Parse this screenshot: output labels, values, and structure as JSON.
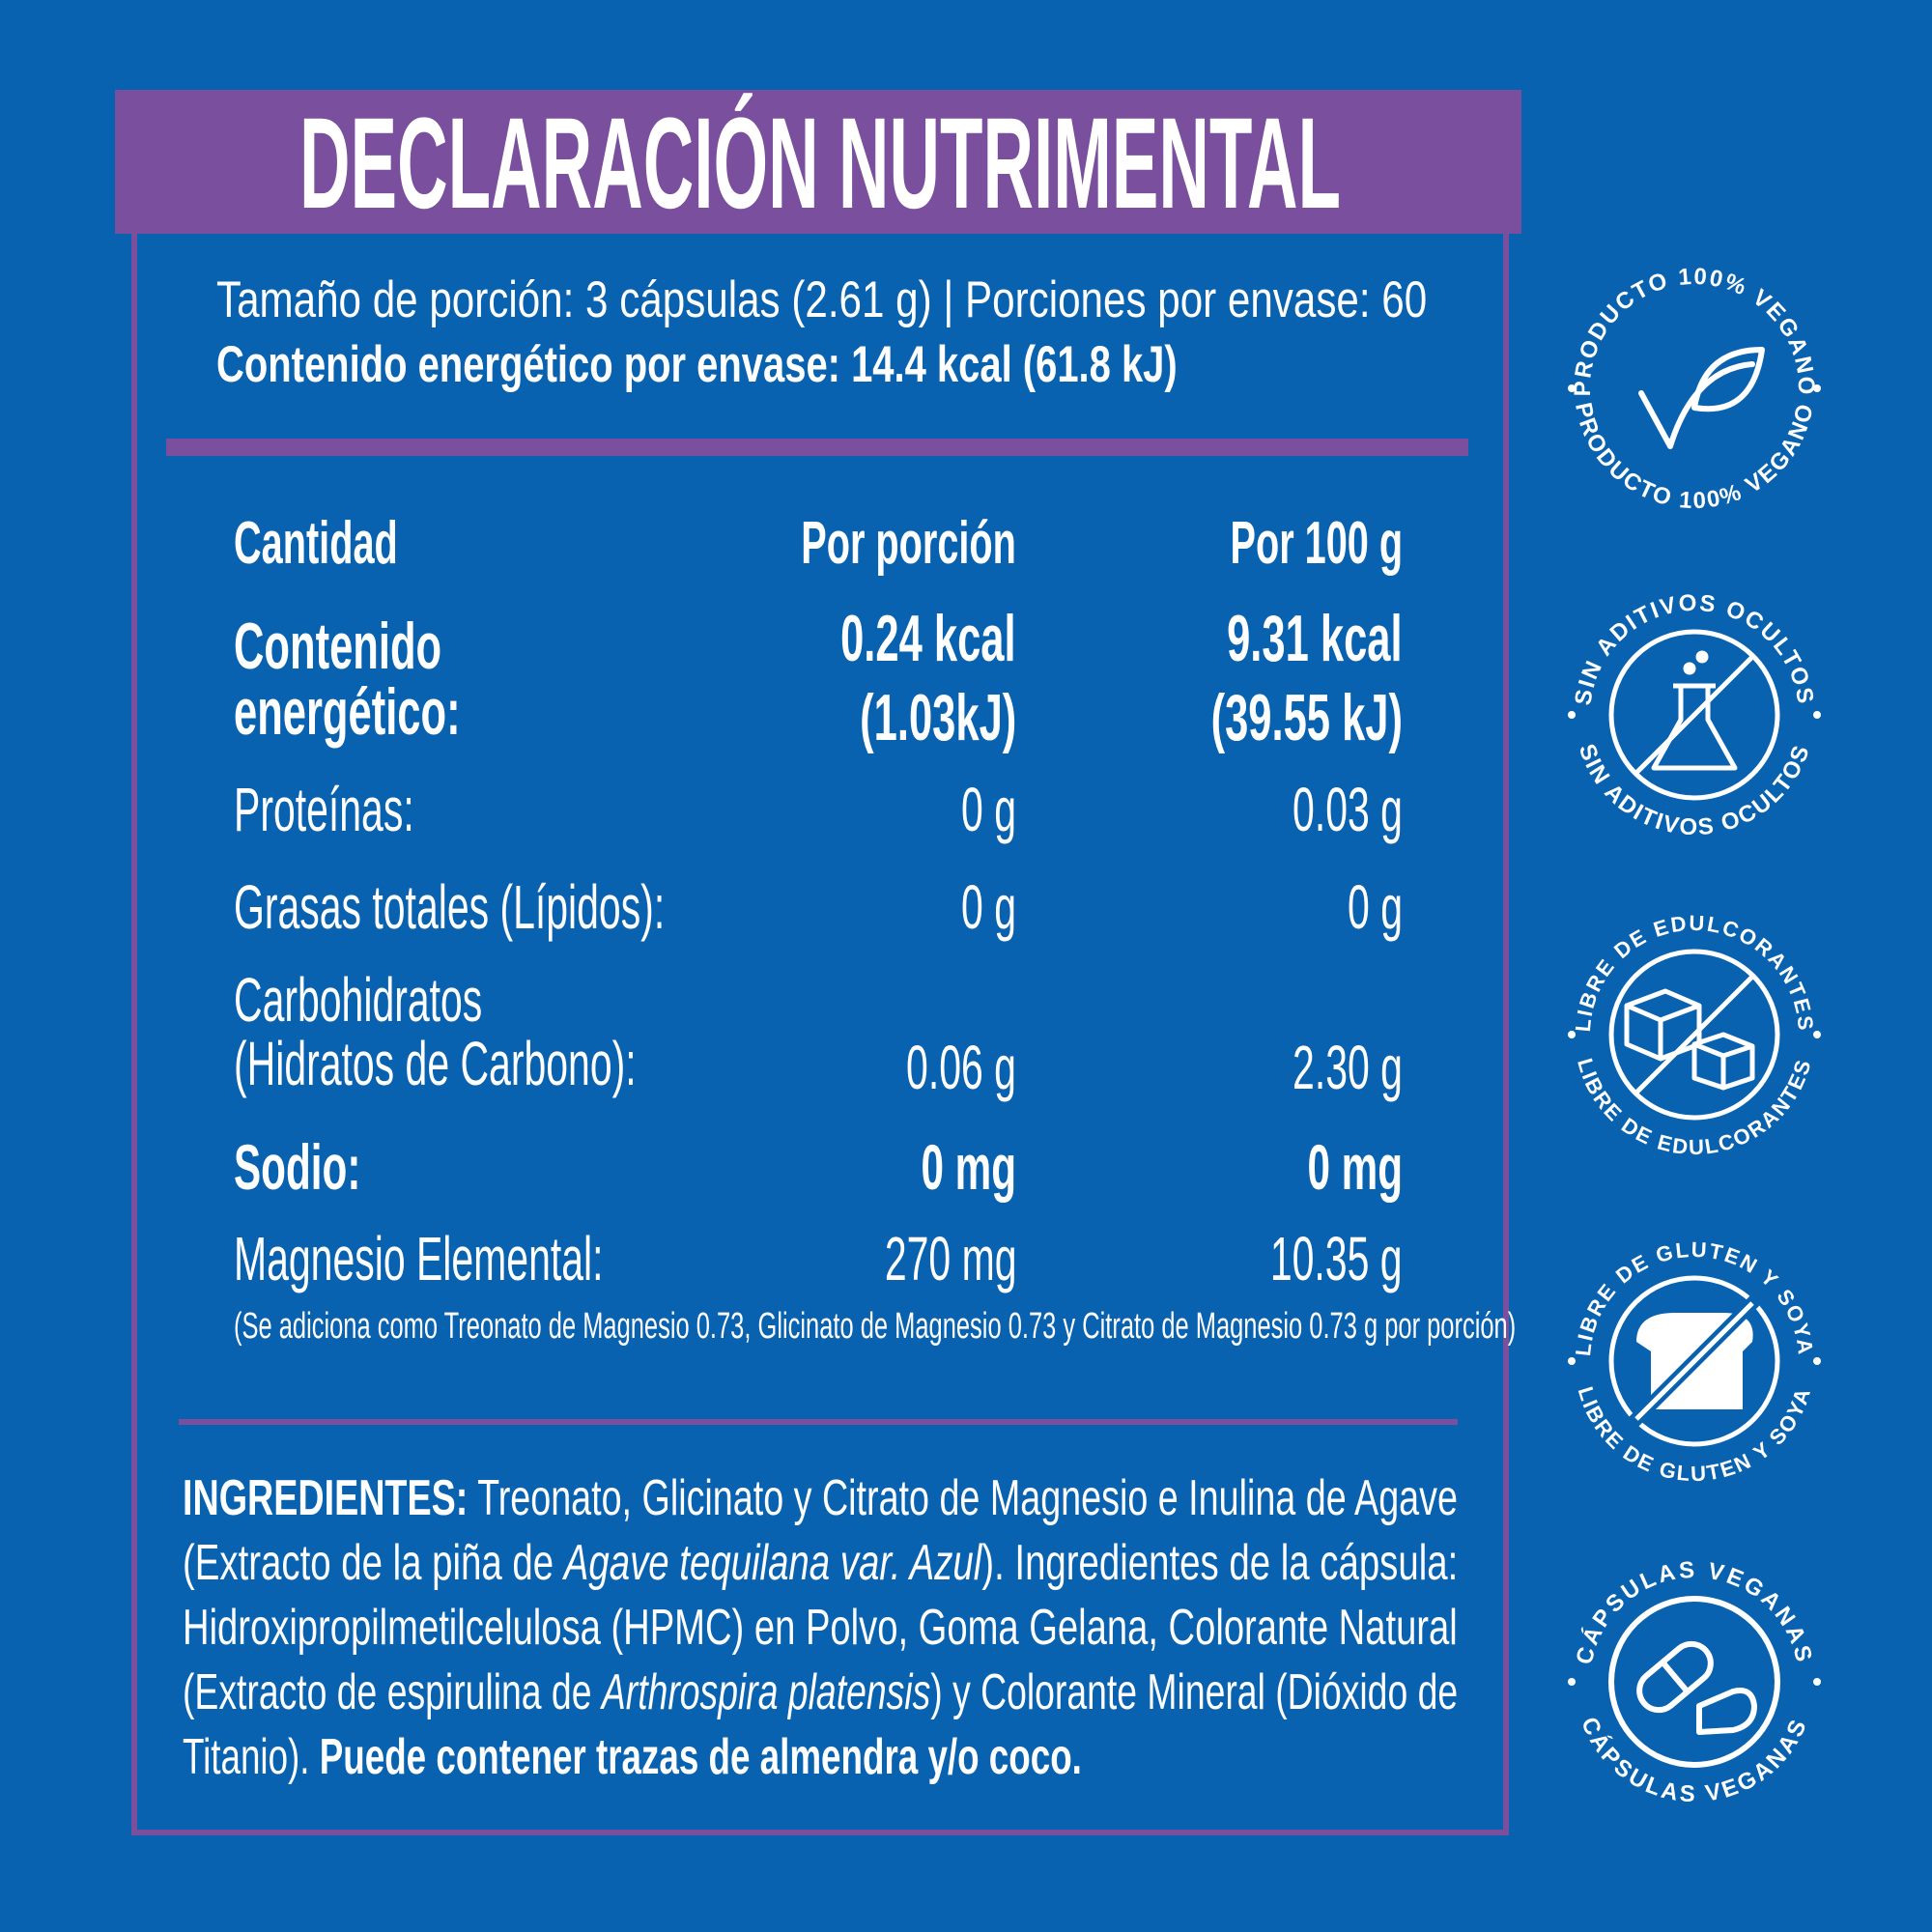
{
  "title": "DECLARACIÓN NUTRIMENTAL",
  "serving": {
    "line1": "Tamaño de porción: 3 cápsulas (2.61 g)  |  Porciones por envase: 60",
    "line2": "Contenido energético por envase: 14.4 kcal (61.8 kJ)"
  },
  "table": {
    "headers": [
      "Cantidad",
      "Por porción",
      "Por 100 g"
    ],
    "rows": [
      {
        "label": [
          "Contenido",
          "energético:"
        ],
        "per_serving": [
          "0.24 kcal",
          "(1.03kJ)"
        ],
        "per_100g": [
          "9.31 kcal",
          "(39.55 kJ)"
        ]
      },
      {
        "label": [
          "Proteínas:"
        ],
        "per_serving": [
          "0 g"
        ],
        "per_100g": [
          "0.03 g"
        ]
      },
      {
        "label": [
          "Grasas totales (Lípidos):"
        ],
        "per_serving": [
          "0 g"
        ],
        "per_100g": [
          "0 g"
        ]
      },
      {
        "label": [
          "Carbohidratos",
          "(Hidratos de Carbono):"
        ],
        "per_serving": [
          "0.06 g"
        ],
        "per_100g": [
          "2.30 g"
        ]
      },
      {
        "label": [
          "Sodio:"
        ],
        "per_serving": [
          "0 mg"
        ],
        "per_100g": [
          "0 mg"
        ]
      },
      {
        "label": [
          "Magnesio Elemental:"
        ],
        "per_serving": [
          "270 mg"
        ],
        "per_100g": [
          "10.35 g"
        ]
      }
    ],
    "note": "(Se adiciona como Treonato de Magnesio 0.73,  Glicinato de Magnesio 0.73  y Citrato de Magnesio  0.73 g por porción)"
  },
  "ingredients": {
    "label": "INGREDIENTES:",
    "l1": "Treonato, Glicinato y Citrato de Magnesio e Inulina de Agave",
    "l2a": "(Extracto de la piña de ",
    "l2b": "Agave tequilana var. Azul",
    "l2c": "). Ingredientes de la cápsula:",
    "l3": "Hidroxipropilmetilcelulosa (HPMC) en Polvo, Goma Gelana, Colorante Natural",
    "l4a": "(Extracto de espirulina de ",
    "l4b": "Arthrospira platensis",
    "l4c": ") y Colorante Mineral (Dióxido de",
    "l5a": "Titanio). ",
    "l5b": "Puede contener trazas de almendra y/o coco."
  },
  "badges": [
    {
      "text": "PRODUCTO 100% VEGANO",
      "icon": "vegan-leaf-check-icon"
    },
    {
      "text": "SIN ADITIVOS OCULTOS",
      "icon": "no-additives-flask-icon"
    },
    {
      "text": "LIBRE DE EDULCORANTES",
      "icon": "no-sugar-cubes-icon"
    },
    {
      "text": "LIBRE DE GLUTEN Y SOYA",
      "icon": "no-gluten-bread-icon"
    },
    {
      "text": "CÁPSULAS VEGANAS",
      "icon": "vegan-capsule-icon"
    }
  ],
  "colors": {
    "background": "#0862b0",
    "accent": "#7a4f9e",
    "text": "#ffffff"
  }
}
